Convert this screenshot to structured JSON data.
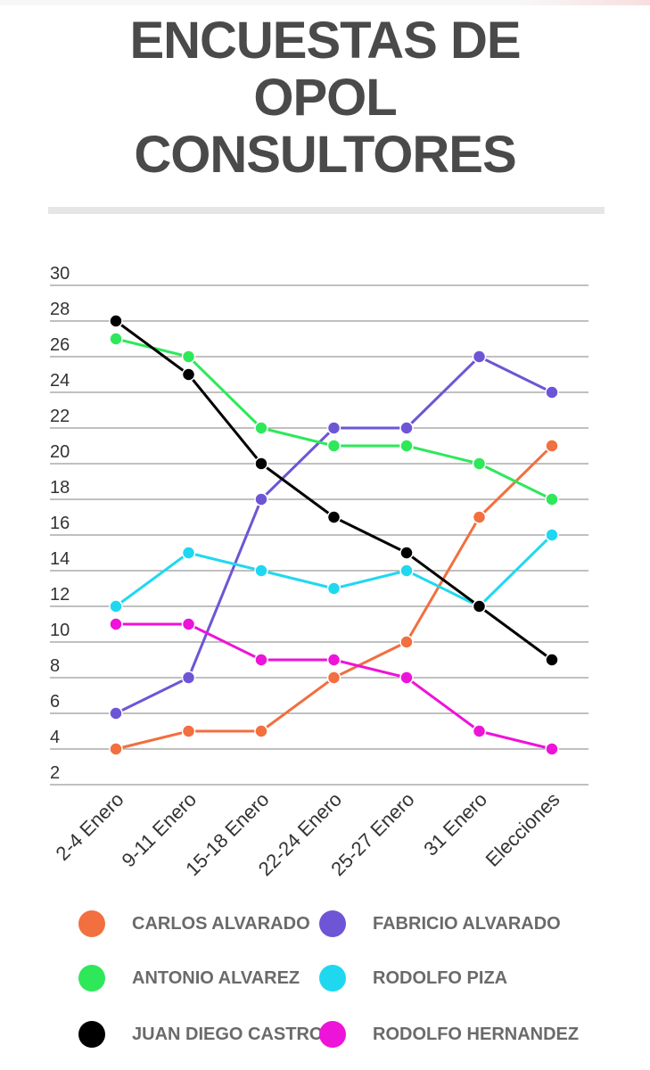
{
  "title": "ENCUESTAS DE\nOPOL\nCONSULTORES",
  "chart_data": {
    "type": "line",
    "title": "ENCUESTAS DE OPOL CONSULTORES",
    "categories": [
      "2-4 Enero",
      "9-11 Enero",
      "15-18 Enero",
      "22-24 Enero",
      "25-27 Enero",
      "31 Enero",
      "Elecciones"
    ],
    "y_ticks": [
      2,
      4,
      6,
      8,
      10,
      12,
      14,
      16,
      18,
      20,
      22,
      24,
      26,
      28,
      30
    ],
    "ylim": [
      2,
      30
    ],
    "grid": true,
    "legend_position": "bottom",
    "series": [
      {
        "name": "CARLOS ALVARADO",
        "color": "#f26f3f",
        "values": [
          4,
          5,
          5,
          8,
          10,
          17,
          21
        ]
      },
      {
        "name": "FABRICIO ALVARADO",
        "color": "#6e55d6",
        "values": [
          6,
          8,
          18,
          22,
          22,
          26,
          24
        ]
      },
      {
        "name": "ANTONIO ALVAREZ",
        "color": "#2ee85a",
        "values": [
          27,
          26,
          22,
          21,
          21,
          20,
          18
        ]
      },
      {
        "name": "RODOLFO PIZA",
        "color": "#1fd8f0",
        "values": [
          12,
          15,
          14,
          13,
          14,
          12,
          16
        ]
      },
      {
        "name": "JUAN DIEGO CASTRO",
        "color": "#000000",
        "values": [
          28,
          25,
          20,
          17,
          15,
          12,
          9
        ]
      },
      {
        "name": "RODOLFO HERNANDEZ",
        "color": "#ee13d8",
        "values": [
          11,
          11,
          9,
          9,
          8,
          5,
          4
        ]
      }
    ]
  }
}
